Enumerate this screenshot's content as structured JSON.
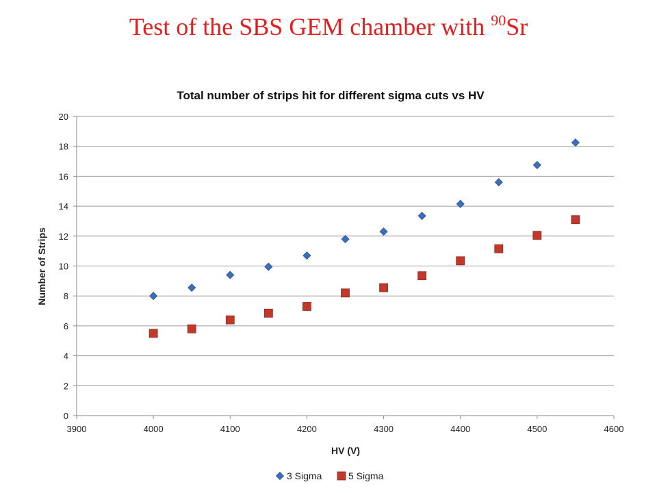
{
  "slide": {
    "title_main": "Test of the SBS GEM chamber with ",
    "title_sup": "90",
    "title_tail": "Sr"
  },
  "chart_data": {
    "type": "scatter",
    "title": "Total number of strips hit for different sigma cuts vs HV",
    "xlabel": "HV (V)",
    "ylabel": "Number of Strips",
    "xlim": [
      3900,
      4600
    ],
    "ylim": [
      0,
      20
    ],
    "xticks": [
      3900,
      4000,
      4100,
      4200,
      4300,
      4400,
      4500,
      4600
    ],
    "yticks": [
      0,
      2,
      4,
      6,
      8,
      10,
      12,
      14,
      16,
      18,
      20
    ],
    "grid": "horizontal",
    "legend_position": "bottom",
    "series": [
      {
        "name": "3 Sigma",
        "marker": "diamond",
        "color": "#3a6fba",
        "x": [
          4000,
          4050,
          4100,
          4150,
          4200,
          4250,
          4300,
          4350,
          4400,
          4450,
          4500,
          4550
        ],
        "y": [
          8.0,
          8.55,
          9.4,
          9.95,
          10.7,
          11.8,
          12.3,
          13.35,
          14.15,
          15.6,
          16.75,
          18.25
        ]
      },
      {
        "name": "5 Sigma",
        "marker": "square",
        "color": "#c0392b",
        "x": [
          4000,
          4050,
          4100,
          4150,
          4200,
          4250,
          4300,
          4350,
          4400,
          4450,
          4500,
          4550
        ],
        "y": [
          5.5,
          5.8,
          6.4,
          6.85,
          7.3,
          8.2,
          8.55,
          9.35,
          10.35,
          11.15,
          12.05,
          13.1
        ]
      }
    ]
  }
}
